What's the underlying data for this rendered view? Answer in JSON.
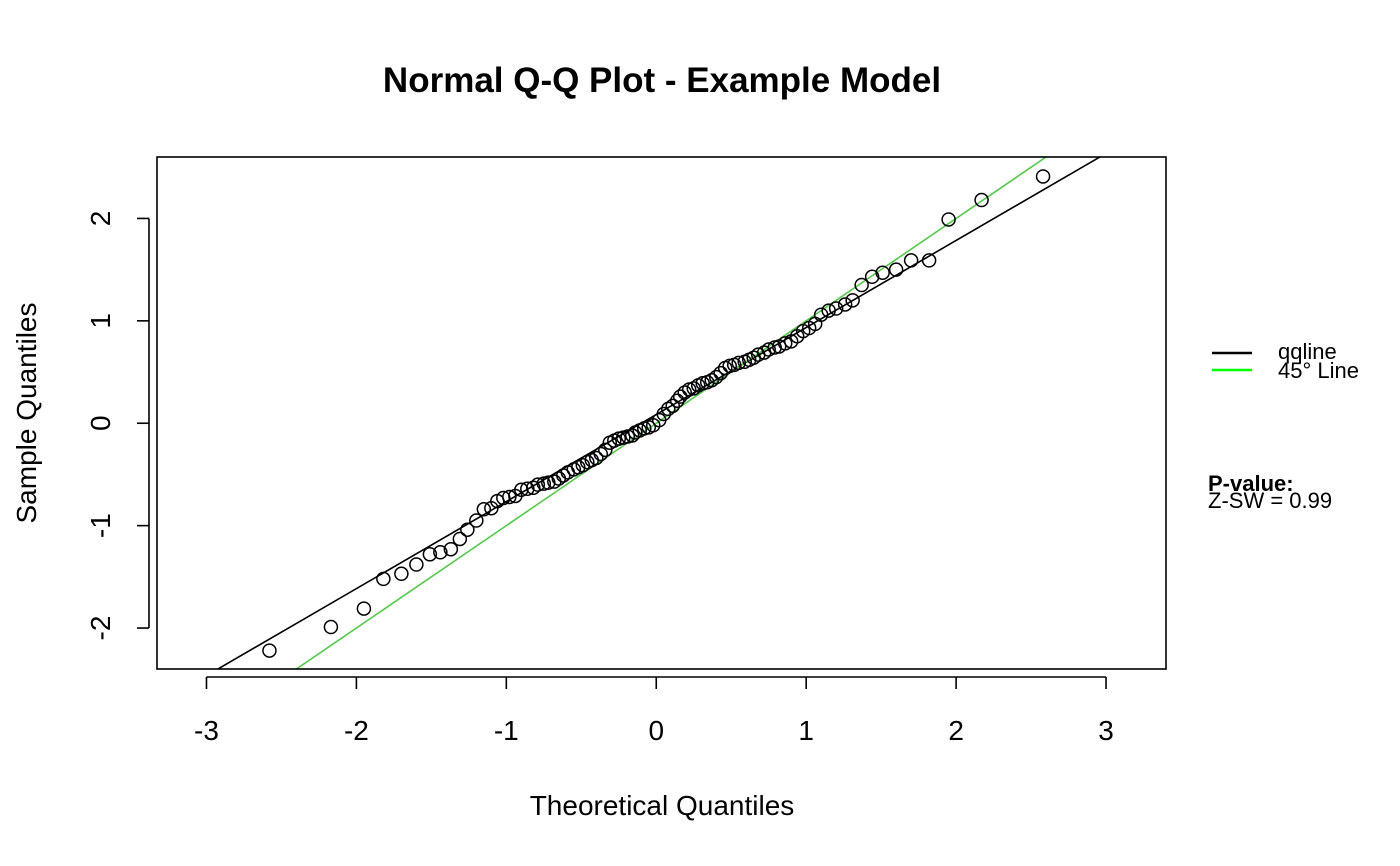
{
  "chart_data": {
    "type": "scatter",
    "title": "Normal Q-Q Plot - Example Model",
    "xlabel": "Theoretical Quantiles",
    "ylabel": "Sample Quantiles",
    "xlim": [
      -3.33,
      3.4
    ],
    "ylim": [
      -2.4,
      2.6
    ],
    "xticks": [
      -3,
      -2,
      -1,
      0,
      1,
      2,
      3
    ],
    "yticks": [
      -2,
      -1,
      0,
      1,
      2
    ],
    "grid": false,
    "legend_position": "right",
    "colors": {
      "points": "#000000",
      "qqline": "#000000",
      "line45": "#54c94c",
      "legend45": "#00ff00"
    },
    "series": [
      {
        "marker": "open-circle",
        "x": [
          -2.58,
          -2.17,
          -1.95,
          -1.82,
          -1.7,
          -1.6,
          -1.51,
          -1.44,
          -1.37,
          -1.31,
          -1.26,
          -1.2,
          -1.15,
          -1.1,
          -1.06,
          -1.02,
          -0.98,
          -0.94,
          -0.9,
          -0.86,
          -0.82,
          -0.79,
          -0.75,
          -0.72,
          -0.68,
          -0.65,
          -0.62,
          -0.59,
          -0.55,
          -0.52,
          -0.49,
          -0.46,
          -0.43,
          -0.4,
          -0.37,
          -0.34,
          -0.31,
          -0.28,
          -0.25,
          -0.22,
          -0.19,
          -0.16,
          -0.14,
          -0.11,
          -0.08,
          -0.05,
          -0.02,
          0.02,
          0.05,
          0.08,
          0.11,
          0.14,
          0.16,
          0.19,
          0.22,
          0.25,
          0.28,
          0.31,
          0.34,
          0.37,
          0.4,
          0.43,
          0.46,
          0.49,
          0.52,
          0.55,
          0.59,
          0.62,
          0.65,
          0.68,
          0.72,
          0.75,
          0.79,
          0.82,
          0.86,
          0.9,
          0.94,
          0.98,
          1.02,
          1.06,
          1.1,
          1.15,
          1.2,
          1.26,
          1.31,
          1.37,
          1.44,
          1.51,
          1.6,
          1.7,
          1.82,
          1.95,
          2.17,
          2.58
        ],
        "y": [
          -2.22,
          -1.99,
          -1.81,
          -1.52,
          -1.47,
          -1.38,
          -1.28,
          -1.26,
          -1.23,
          -1.13,
          -1.04,
          -0.95,
          -0.84,
          -0.83,
          -0.76,
          -0.73,
          -0.72,
          -0.71,
          -0.65,
          -0.64,
          -0.63,
          -0.6,
          -0.59,
          -0.58,
          -0.57,
          -0.54,
          -0.51,
          -0.48,
          -0.45,
          -0.43,
          -0.41,
          -0.38,
          -0.36,
          -0.34,
          -0.3,
          -0.26,
          -0.19,
          -0.17,
          -0.15,
          -0.14,
          -0.13,
          -0.12,
          -0.09,
          -0.07,
          -0.05,
          -0.04,
          -0.02,
          0.03,
          0.09,
          0.14,
          0.17,
          0.22,
          0.26,
          0.3,
          0.33,
          0.34,
          0.37,
          0.39,
          0.4,
          0.42,
          0.45,
          0.49,
          0.54,
          0.56,
          0.57,
          0.59,
          0.6,
          0.62,
          0.64,
          0.67,
          0.69,
          0.72,
          0.74,
          0.75,
          0.78,
          0.8,
          0.85,
          0.9,
          0.93,
          0.97,
          1.06,
          1.1,
          1.12,
          1.16,
          1.2,
          1.35,
          1.43,
          1.47,
          1.5,
          1.59,
          1.59,
          1.99,
          2.18,
          2.41
        ]
      }
    ],
    "lines": [
      {
        "name": "qqline",
        "intercept": 0.085,
        "slope": 0.85
      },
      {
        "name": "45° Line",
        "intercept": 0,
        "slope": 1
      }
    ],
    "legend": [
      {
        "label": "qqline",
        "color": "#000000"
      },
      {
        "label": "45° Line",
        "color": "#00ff00"
      }
    ],
    "annotation": {
      "heading": "P-value:",
      "text": "Z-SW = 0.99"
    }
  }
}
